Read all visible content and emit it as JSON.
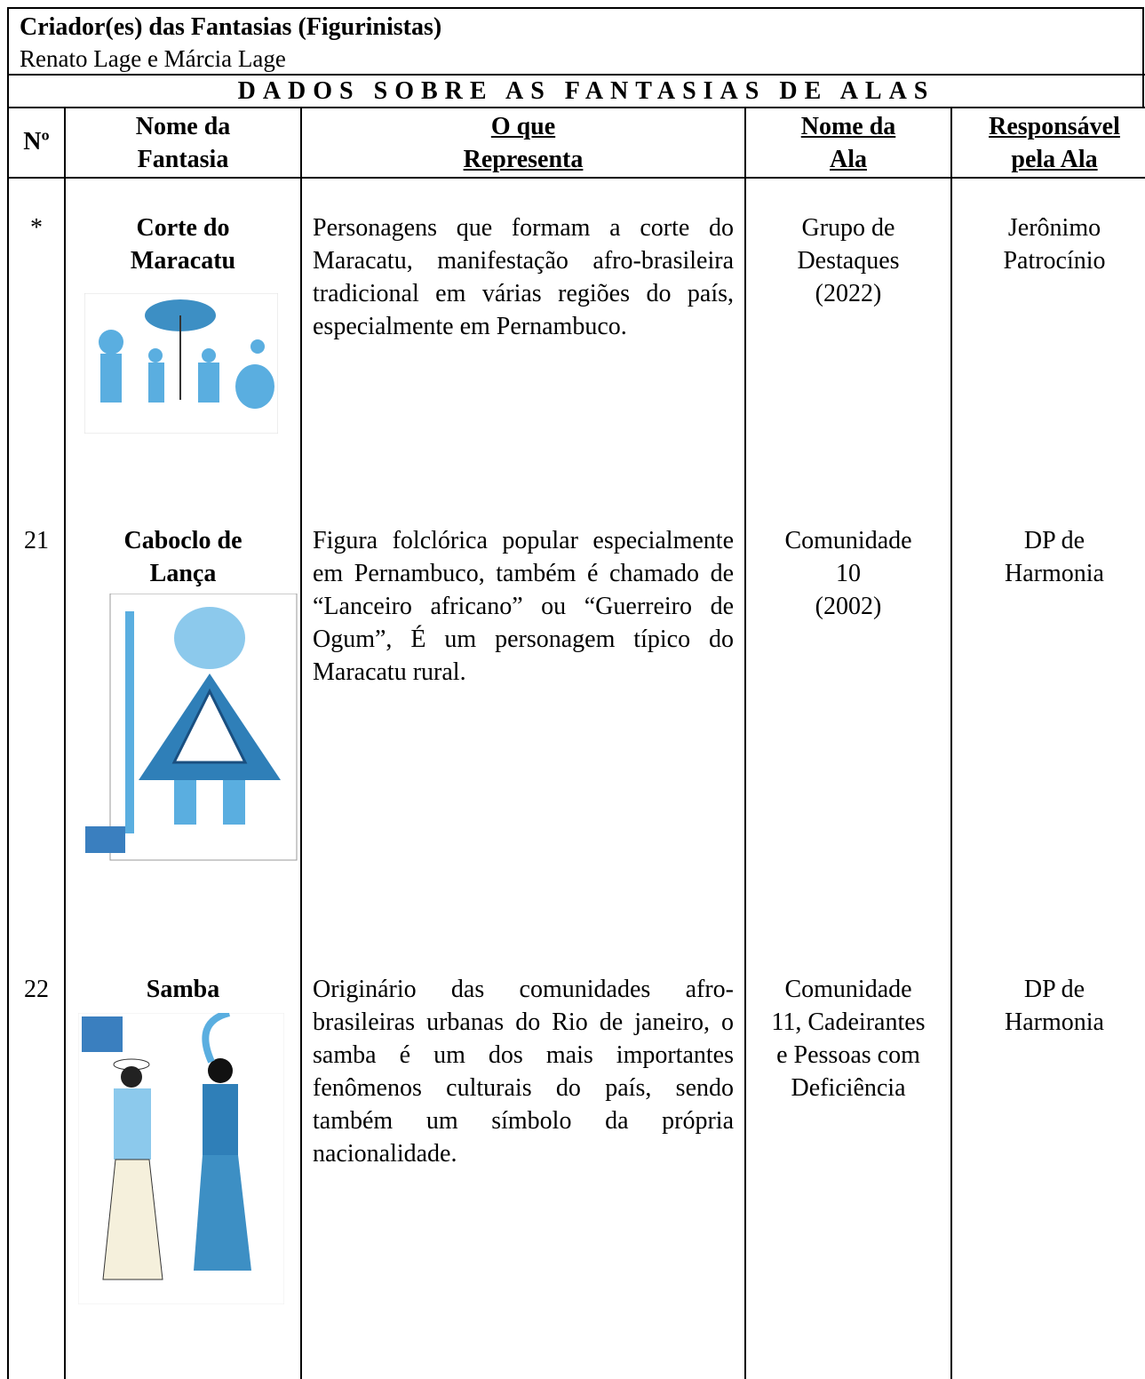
{
  "header": {
    "label": "Criador(es) das Fantasias (Figurinistas)",
    "value": "Renato Lage e Márcia Lage"
  },
  "table": {
    "title": "DADOS SOBRE AS FANTASIAS DE ALAS",
    "columns": [
      "Nº",
      "Nome da\nFantasia",
      "O que\nRepresenta",
      "Nome da\nAla",
      "Responsável\npela Ala"
    ],
    "rows": [
      [
        "*",
        "Corte do\nMaracatu",
        "Personagens que formam a corte do Maracatu, manifestação afro-brasileira tradicional em várias regiões do país, especialmente em Pernambuco.",
        "Grupo de\nDestaques\n(2022)",
        "Jerônimo\nPatrocínio"
      ],
      [
        "21",
        "Caboclo de\nLança",
        "Figura folclórica popular especialmente em Pernambuco, também é chamado de “Lanceiro africano” ou “Guerreiro de Ogum”, É um personagem típico do Maracatu rural.",
        "Comunidade\n10\n(2002)",
        "DP de\nHarmonia"
      ],
      [
        "22",
        "Samba",
        "Originário das comunidades afro-brasileiras urbanas do Rio de janeiro, o samba é um dos mais importantes fenômenos culturais do país, sendo também um símbolo da própria nacionalidade.",
        "Comunidade\n11, Cadeirantes\ne Pessoas com\nDeficiência",
        "DP de\nHarmonia"
      ]
    ]
  }
}
